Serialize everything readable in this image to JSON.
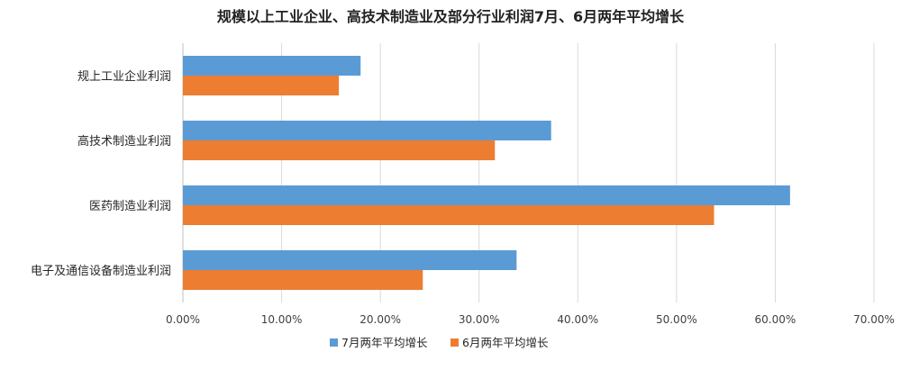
{
  "chart_data": {
    "type": "bar",
    "orientation": "horizontal",
    "title": "规模以上工业企业、高技术制造业及部分行业利润7月、6月两年平均增长",
    "categories": [
      "规上工业企业利润",
      "高技术制造业利润",
      "医药制造业利润",
      "电子及通信设备制造业利润"
    ],
    "series": [
      {
        "name": "7月两年平均增长",
        "values": [
          18.0,
          37.3,
          61.5,
          33.8
        ],
        "color": "#5B9BD5"
      },
      {
        "name": "6月两年平均增长",
        "values": [
          15.8,
          31.6,
          53.8,
          24.3
        ],
        "color": "#ED7D31"
      }
    ],
    "xlim": [
      0,
      70
    ],
    "x_ticks": [
      "0.00%",
      "10.00%",
      "20.00%",
      "30.00%",
      "40.00%",
      "50.00%",
      "60.00%",
      "70.00%"
    ],
    "grid": "vertical",
    "legend_position": "bottom"
  }
}
